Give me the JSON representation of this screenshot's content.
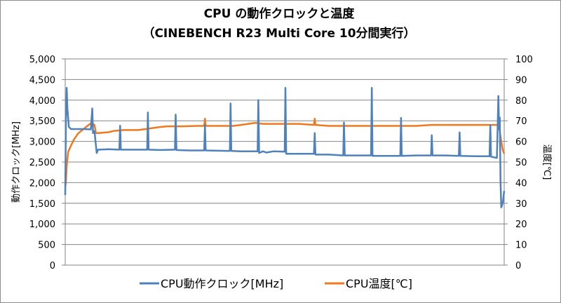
{
  "chart_data": {
    "type": "line",
    "title": "CPU の動作クロックと温度",
    "subtitle": "（CINEBENCH R23 Multi Core 10分間実行）",
    "ylabel": "動作クロック[MHz]",
    "y2label": "温度[℃]",
    "ylim": [
      0,
      5000
    ],
    "y2lim": [
      0,
      100
    ],
    "yticks": [
      "0",
      "500",
      "1,000",
      "1,500",
      "2,000",
      "2,500",
      "3,000",
      "3,500",
      "4,000",
      "4,500",
      "5,000"
    ],
    "y2ticks": [
      "0",
      "10",
      "20",
      "30",
      "40",
      "50",
      "60",
      "70",
      "80",
      "90",
      "100"
    ],
    "xlim": [
      0,
      600
    ],
    "grid": "horizontal",
    "legend_position": "bottom",
    "series": [
      {
        "name": "CPU動作クロック[MHz]",
        "axis": "left",
        "color": "#4f81bd",
        "points": [
          [
            0,
            1700
          ],
          [
            1,
            3500
          ],
          [
            2,
            4300
          ],
          [
            3,
            3800
          ],
          [
            5,
            3350
          ],
          [
            8,
            3300
          ],
          [
            15,
            3300
          ],
          [
            25,
            3300
          ],
          [
            35,
            3290
          ],
          [
            37,
            3800
          ],
          [
            38,
            3200
          ],
          [
            40,
            3250
          ],
          [
            42,
            2900
          ],
          [
            43,
            2720
          ],
          [
            45,
            2800
          ],
          [
            60,
            2810
          ],
          [
            74,
            2800
          ],
          [
            75,
            3380
          ],
          [
            76,
            2800
          ],
          [
            90,
            2800
          ],
          [
            112,
            2800
          ],
          [
            113,
            3700
          ],
          [
            114,
            2800
          ],
          [
            130,
            2790
          ],
          [
            150,
            2800
          ],
          [
            151,
            3650
          ],
          [
            152,
            2790
          ],
          [
            170,
            2780
          ],
          [
            190,
            2780
          ],
          [
            191,
            3400
          ],
          [
            192,
            2780
          ],
          [
            220,
            2770
          ],
          [
            225,
            2770
          ],
          [
            226,
            3920
          ],
          [
            227,
            2770
          ],
          [
            240,
            2760
          ],
          [
            263,
            2760
          ],
          [
            264,
            4000
          ],
          [
            265,
            2720
          ],
          [
            270,
            2760
          ],
          [
            275,
            2730
          ],
          [
            285,
            2760
          ],
          [
            300,
            2750
          ],
          [
            301,
            4300
          ],
          [
            302,
            2700
          ],
          [
            320,
            2700
          ],
          [
            340,
            2700
          ],
          [
            341,
            3200
          ],
          [
            342,
            2680
          ],
          [
            360,
            2680
          ],
          [
            380,
            2660
          ],
          [
            381,
            3460
          ],
          [
            382,
            2660
          ],
          [
            400,
            2660
          ],
          [
            418,
            2660
          ],
          [
            419,
            4300
          ],
          [
            420,
            2650
          ],
          [
            440,
            2650
          ],
          [
            458,
            2650
          ],
          [
            459,
            3570
          ],
          [
            460,
            2650
          ],
          [
            480,
            2660
          ],
          [
            500,
            2660
          ],
          [
            501,
            3150
          ],
          [
            502,
            2660
          ],
          [
            520,
            2660
          ],
          [
            538,
            2650
          ],
          [
            539,
            3220
          ],
          [
            540,
            2650
          ],
          [
            560,
            2640
          ],
          [
            580,
            2640
          ],
          [
            581,
            3400
          ],
          [
            582,
            2630
          ],
          [
            590,
            2600
          ],
          [
            592,
            4100
          ],
          [
            593,
            3300
          ],
          [
            594,
            3580
          ],
          [
            595,
            2000
          ],
          [
            596,
            1400
          ],
          [
            598,
            1500
          ],
          [
            600,
            1800
          ]
        ]
      },
      {
        "name": "CPU温度[℃]",
        "axis": "right",
        "color": "#f0781e",
        "points": [
          [
            0,
            38
          ],
          [
            1,
            40
          ],
          [
            2,
            48
          ],
          [
            4,
            55
          ],
          [
            8,
            58
          ],
          [
            12,
            61
          ],
          [
            18,
            64
          ],
          [
            25,
            66
          ],
          [
            32,
            68
          ],
          [
            36,
            69
          ],
          [
            40,
            68
          ],
          [
            42,
            64
          ],
          [
            45,
            64
          ],
          [
            60,
            64.5
          ],
          [
            65,
            65
          ],
          [
            80,
            65.5
          ],
          [
            100,
            65.5
          ],
          [
            110,
            66
          ],
          [
            120,
            66.5
          ],
          [
            130,
            67
          ],
          [
            140,
            67.3
          ],
          [
            160,
            67.3
          ],
          [
            180,
            67.5
          ],
          [
            190,
            67.5
          ],
          [
            191,
            71
          ],
          [
            192,
            67.5
          ],
          [
            230,
            67.5
          ],
          [
            240,
            68
          ],
          [
            250,
            68.5
          ],
          [
            260,
            69
          ],
          [
            270,
            68.5
          ],
          [
            280,
            68.5
          ],
          [
            300,
            68.5
          ],
          [
            320,
            68.5
          ],
          [
            340,
            68
          ],
          [
            341,
            71
          ],
          [
            342,
            68
          ],
          [
            360,
            67.5
          ],
          [
            400,
            67.5
          ],
          [
            440,
            67.5
          ],
          [
            480,
            67.5
          ],
          [
            500,
            68
          ],
          [
            520,
            68
          ],
          [
            540,
            68
          ],
          [
            560,
            68
          ],
          [
            580,
            68
          ],
          [
            590,
            68
          ],
          [
            593,
            67
          ],
          [
            596,
            60
          ],
          [
            598,
            56
          ],
          [
            600,
            54
          ]
        ]
      }
    ]
  }
}
